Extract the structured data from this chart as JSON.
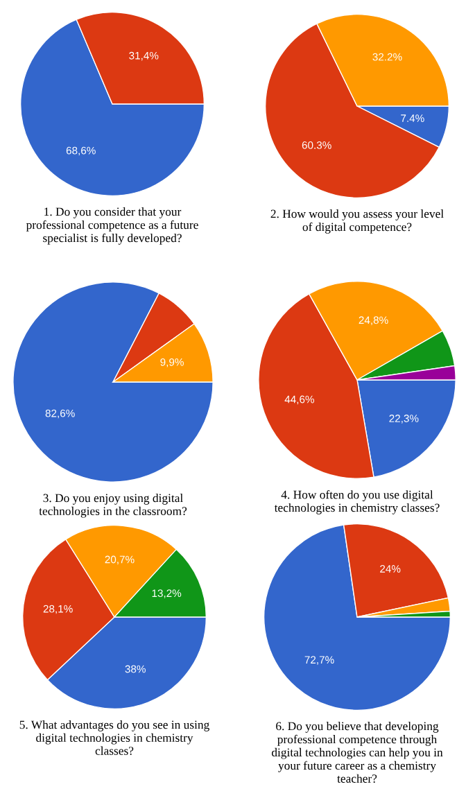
{
  "chart_data": [
    {
      "type": "pie",
      "title": "1. Do you consider that your\nprofessional competence as a future\nspecialist is fully developed?",
      "categories": [
        null,
        null
      ],
      "values": [
        68.6,
        31.4
      ],
      "colors": [
        "#3366cc",
        "#dc3912"
      ],
      "value_labels": [
        "68,6%",
        "31,4%"
      ]
    },
    {
      "type": "pie",
      "title": "2. How would you assess your level\nof digital competence?",
      "categories": [
        null,
        null,
        null
      ],
      "values": [
        7.4,
        60.3,
        32.2
      ],
      "colors": [
        "#3366cc",
        "#dc3912",
        "#ff9900"
      ],
      "value_labels": [
        "7.4%",
        "60.3%",
        "32.2%"
      ]
    },
    {
      "type": "pie",
      "title": "3. Do you enjoy using digital\ntechnologies in the classroom?",
      "categories": [
        null,
        null,
        null
      ],
      "values": [
        82.6,
        7.5,
        9.9
      ],
      "colors": [
        "#3366cc",
        "#dc3912",
        "#ff9900"
      ],
      "value_labels": [
        "82,6%",
        null,
        "9,9%"
      ]
    },
    {
      "type": "pie",
      "title": "4. How often do you use digital\ntechnologies in chemistry classes?",
      "categories": [
        null,
        null,
        null,
        null,
        null
      ],
      "values": [
        22.3,
        44.6,
        24.8,
        6.0,
        2.3
      ],
      "colors": [
        "#3366cc",
        "#dc3912",
        "#ff9900",
        "#109618",
        "#990099"
      ],
      "value_labels": [
        "22,3%",
        "44,6%",
        "24,8%",
        null,
        null
      ]
    },
    {
      "type": "pie",
      "title": "5. What advantages do you see in using\ndigital technologies in chemistry\nclasses?",
      "categories": [
        null,
        null,
        null,
        null
      ],
      "values": [
        38,
        28.1,
        20.7,
        13.2
      ],
      "colors": [
        "#3366cc",
        "#dc3912",
        "#ff9900",
        "#109618"
      ],
      "value_labels": [
        "38%",
        "28,1%",
        "20,7%",
        "13,2%"
      ]
    },
    {
      "type": "pie",
      "title": "6. Do you believe that developing\nprofessional competence through\ndigital technologies can help you in\nyour future career as a chemistry\nteacher?",
      "categories": [
        null,
        null,
        null,
        null
      ],
      "values": [
        72.7,
        24,
        2.3,
        1.0
      ],
      "colors": [
        "#3366cc",
        "#dc3912",
        "#ff9900",
        "#109618"
      ],
      "value_labels": [
        "72,7%",
        "24%",
        null,
        null
      ]
    }
  ]
}
